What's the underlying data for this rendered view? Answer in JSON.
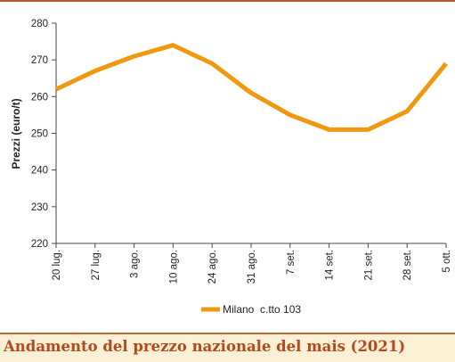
{
  "caption": "Andamento del prezzo nazionale del mais (2021)",
  "colors": {
    "series_line": "#f0980f",
    "caption_text": "#b44a1c",
    "caption_background": "#faf0d6",
    "rule": "#c8632b"
  },
  "chart_data": {
    "type": "line",
    "title": "",
    "xlabel": "",
    "ylabel": "Prezzi (euro/t)",
    "categories": [
      "20 lug.",
      "27 lug.",
      "3 ago.",
      "10 ago.",
      "24 ago.",
      "31 ago.",
      "7 set.",
      "14 set.",
      "21 set.",
      "28 set.",
      "5 ott."
    ],
    "series": [
      {
        "name": "Milano  c.tto 103",
        "values": [
          262,
          267,
          271,
          274,
          269,
          261,
          255,
          251,
          251,
          256,
          269
        ]
      }
    ],
    "ylim": [
      220,
      280
    ],
    "yticks": [
      220,
      230,
      240,
      250,
      260,
      270,
      280
    ],
    "grid": false,
    "legend": "bottom-center"
  }
}
